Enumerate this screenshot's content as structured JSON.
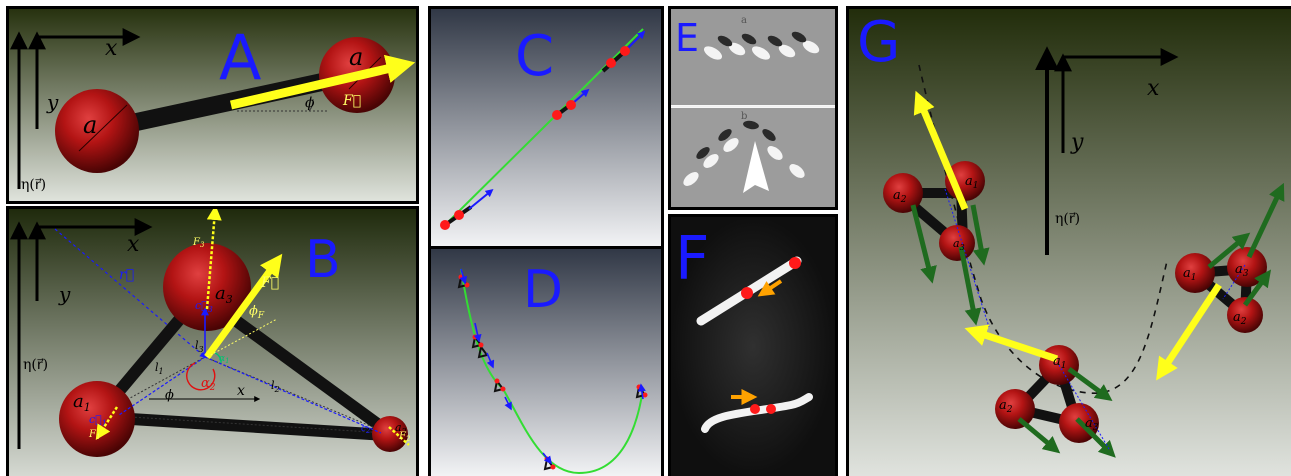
{
  "panels": {
    "A": {
      "label": "A",
      "axis_x": "x",
      "axis_y": "y",
      "eta": "η(r⃗)",
      "sphere_left": "a",
      "sphere_right": "a",
      "force": "F⃗",
      "angle": "ϕ"
    },
    "B": {
      "label": "B",
      "axis_x": "x",
      "axis_y": "y",
      "eta": "η(r⃗)",
      "r_vec": "r⃗",
      "a1": "a",
      "a1_sub": "1",
      "a3": "a",
      "a3_sub": "3",
      "a2": "a",
      "a2_sub": "2",
      "F": "F⃗",
      "F1": "F",
      "F1_sub": "1",
      "F3": "F",
      "F3_sub": "3",
      "F2": "F",
      "F2_sub": "2",
      "phi_F": "ϕ",
      "phi_F_sub": "F",
      "alpha1": "α",
      "alpha1_sub": "1",
      "alpha2": "α",
      "alpha2_sub": "2",
      "l1": "l",
      "l1_sub": "1",
      "l2": "l",
      "l2_sub": "2",
      "l3": "l",
      "l3_sub": "3",
      "phi": "ϕ",
      "inner_x": "x",
      "c1": "c⃗",
      "c1_sub": "1",
      "c3": "c⃗",
      "c3_sub": "3",
      "c2": "c",
      "c2_sub": "2"
    },
    "C": {
      "label": "C"
    },
    "D": {
      "label": "D"
    },
    "E": {
      "label": "E",
      "top_mark": "a",
      "bottom_mark": "b"
    },
    "F": {
      "label": "F"
    },
    "G": {
      "label": "G",
      "axis_x": "x",
      "axis_y": "y",
      "eta": "η(r⃗)",
      "top": {
        "a1": "a",
        "a1_sub": "1",
        "a2": "a",
        "a2_sub": "2",
        "a3": "a",
        "a3_sub": "3"
      },
      "right": {
        "a1": "a",
        "a1_sub": "1",
        "a2": "a",
        "a2_sub": "2",
        "a3": "a",
        "a3_sub": "3"
      },
      "bottom": {
        "a1": "a",
        "a1_sub": "1",
        "a2": "a",
        "a2_sub": "2",
        "a3": "a",
        "a3_sub": "3"
      }
    }
  },
  "colors": {
    "label_blue": "#1a1aff",
    "force_yellow": "#ffff1a",
    "sphere_red": "#b31414",
    "rod_black": "#111111",
    "bg_dark_green": "#2b3512",
    "green_arrow": "#1f6b1f",
    "path_green": "#33dd33"
  }
}
